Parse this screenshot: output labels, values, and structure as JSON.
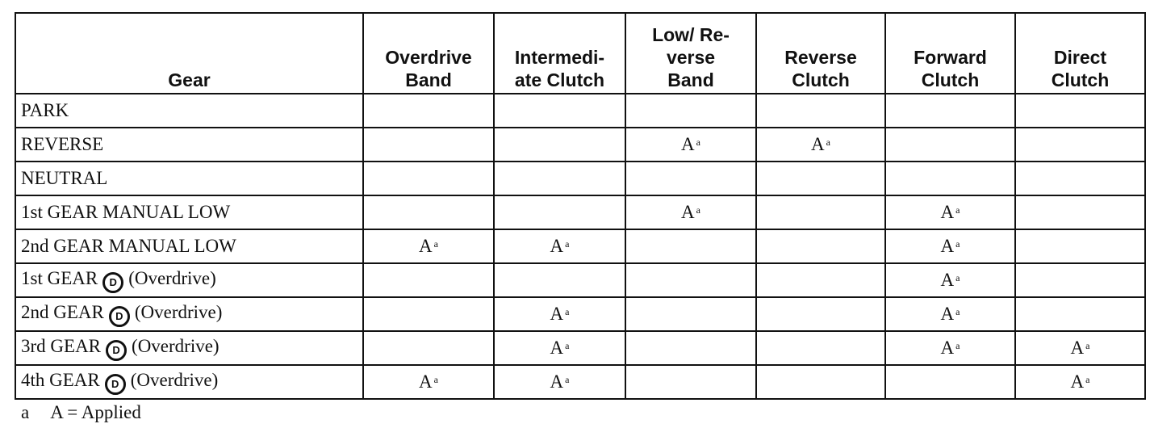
{
  "table": {
    "headers": [
      [
        "Gear"
      ],
      [
        "Overdrive",
        "Band"
      ],
      [
        "Intermedi-",
        "ate Clutch"
      ],
      [
        "Low/ Re-",
        "verse",
        "Band"
      ],
      [
        "Reverse",
        "Clutch"
      ],
      [
        "Forward",
        "Clutch"
      ],
      [
        "Direct",
        "Clutch"
      ]
    ],
    "rows": [
      {
        "gear": "PARK",
        "cells": [
          null,
          null,
          null,
          null,
          null,
          null
        ]
      },
      {
        "gear": "REVERSE",
        "cells": [
          null,
          null,
          {
            "text": "A",
            "note": "a"
          },
          {
            "text": "A",
            "note": "a"
          },
          null,
          null
        ]
      },
      {
        "gear": "NEUTRAL",
        "cells": [
          null,
          null,
          null,
          null,
          null,
          null
        ]
      },
      {
        "gear": "1st GEAR MANUAL LOW",
        "cells": [
          null,
          null,
          {
            "text": "A",
            "note": "a"
          },
          null,
          {
            "text": "A",
            "note": "a"
          },
          null
        ]
      },
      {
        "gear": "2nd GEAR MANUAL LOW",
        "cells": [
          {
            "text": "A",
            "note": "a"
          },
          {
            "text": "A",
            "note": "a"
          },
          null,
          null,
          {
            "text": "A",
            "note": "a"
          },
          null
        ]
      },
      {
        "gear": "1st GEAR",
        "selector": "D",
        "mode": "(Overdrive)",
        "cells": [
          null,
          null,
          null,
          null,
          {
            "text": "A",
            "note": "a"
          },
          null
        ]
      },
      {
        "gear": "2nd GEAR",
        "selector": "D",
        "mode": "(Overdrive)",
        "cells": [
          null,
          {
            "text": "A",
            "note": "a"
          },
          null,
          null,
          {
            "text": "A",
            "note": "a"
          },
          null
        ]
      },
      {
        "gear": "3rd GEAR",
        "selector": "D",
        "mode": "(Overdrive)",
        "cells": [
          null,
          {
            "text": "A",
            "note": "a"
          },
          null,
          null,
          {
            "text": "A",
            "note": "a"
          },
          {
            "text": "A",
            "note": "a"
          }
        ]
      },
      {
        "gear": "4th GEAR",
        "selector": "D",
        "mode": "(Overdrive)",
        "cells": [
          {
            "text": "A",
            "note": "a"
          },
          {
            "text": "A",
            "note": "a"
          },
          null,
          null,
          null,
          {
            "text": "A",
            "note": "a"
          }
        ]
      }
    ]
  },
  "footnote": {
    "mark": "a",
    "text": "A = Applied"
  }
}
